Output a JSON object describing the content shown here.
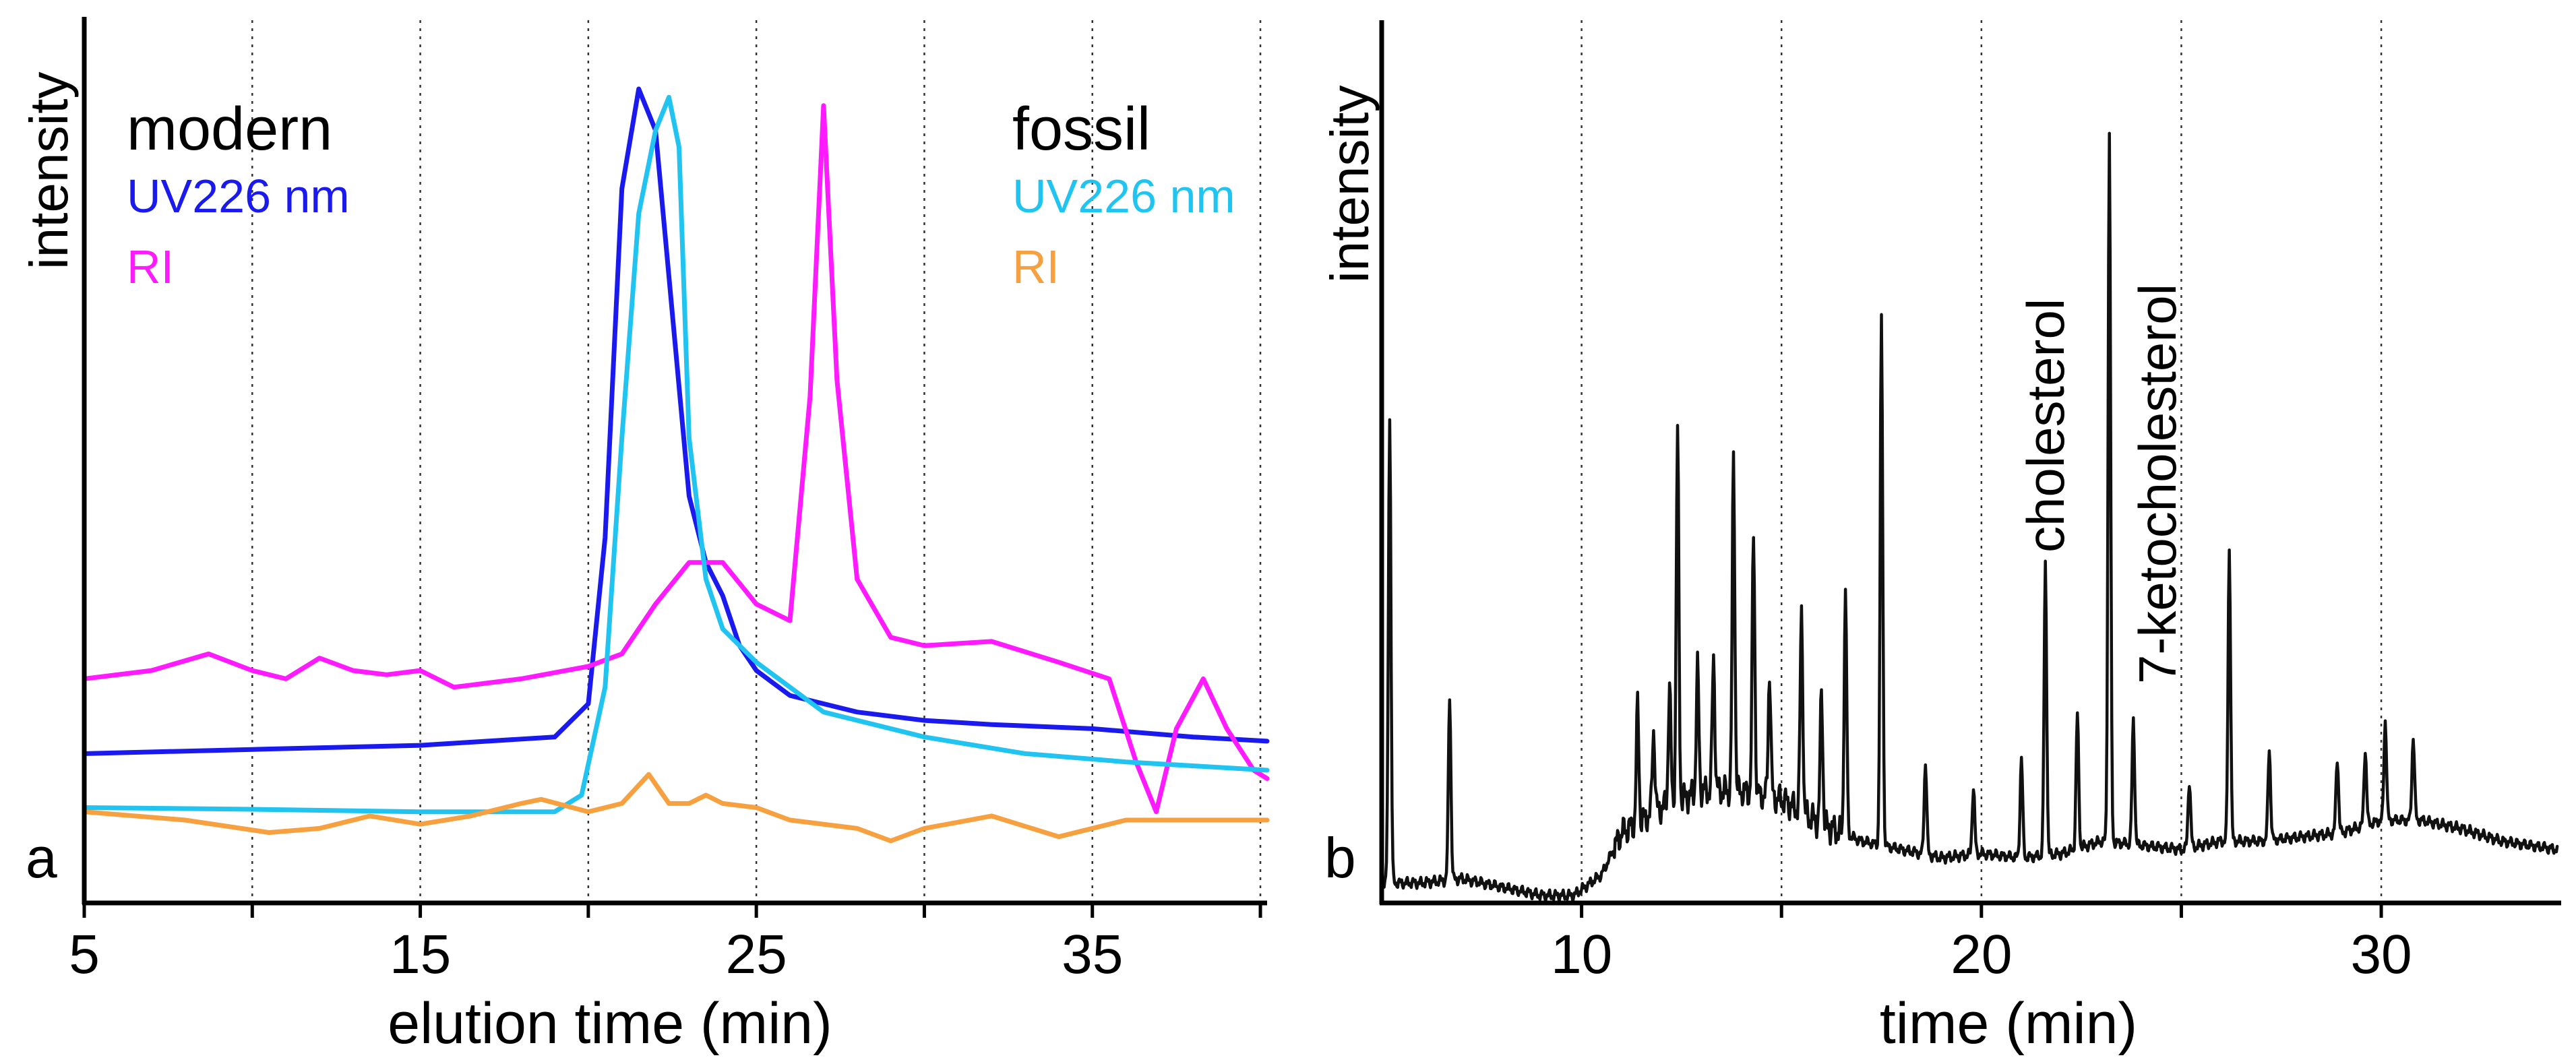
{
  "chart_data": [
    {
      "type": "line",
      "panel_label": "a",
      "title": "",
      "xlabel": "elution time (min)",
      "ylabel": "intensity",
      "xlim": [
        5,
        40.2
      ],
      "ylim": [
        0,
        100
      ],
      "grid": true,
      "x_ticks": [
        5,
        10,
        15,
        20,
        25,
        30,
        35,
        40
      ],
      "x_tick_labels": [
        {
          "value": 5,
          "text": "5"
        },
        {
          "value": 15,
          "text": "15"
        },
        {
          "value": 25,
          "text": "25"
        },
        {
          "value": 35,
          "text": "35"
        }
      ],
      "legend": {
        "groups": [
          {
            "heading": "modern",
            "placement": "top-left",
            "entries": [
              {
                "text": "UV226 nm",
                "color": "#1a1aee"
              },
              {
                "text": "RI",
                "color": "#ff1aff"
              }
            ]
          },
          {
            "heading": "fossil",
            "placement": "top-right",
            "entries": [
              {
                "text": "UV226 nm",
                "color": "#21c4f0"
              },
              {
                "text": "RI",
                "color": "#f7a040"
              }
            ]
          }
        ]
      },
      "series": [
        {
          "name": "modern UV226 nm",
          "color": "#1a1aee",
          "x": [
            5,
            10,
            15,
            19,
            20,
            20.5,
            21,
            21.5,
            22,
            22.5,
            23,
            23.5,
            24,
            24.5,
            25,
            26,
            28,
            30,
            32,
            35,
            38,
            40.2
          ],
          "y": [
            17,
            17.5,
            18,
            19,
            23,
            43,
            85,
            97,
            92,
            70,
            48,
            40,
            36,
            30,
            27,
            24,
            22,
            21,
            20.5,
            20,
            19,
            18.5
          ]
        },
        {
          "name": "modern RI",
          "color": "#ff1aff",
          "x": [
            5,
            7,
            8.7,
            10,
            11,
            12,
            13,
            14,
            15,
            16,
            18,
            20,
            21,
            22,
            23,
            24,
            25,
            26,
            26.6,
            27,
            27.4,
            28,
            29,
            30,
            32,
            34,
            35.5,
            36.3,
            36.9,
            37.5,
            38.3,
            39,
            39.8,
            40.2
          ],
          "y": [
            26,
            27,
            29,
            27,
            26,
            28.5,
            27,
            26.5,
            27,
            25,
            26,
            27.5,
            29,
            35,
            40,
            40,
            35,
            33,
            60,
            95,
            62,
            38,
            31,
            30,
            30.5,
            28,
            26,
            16,
            10,
            20,
            26,
            20,
            15,
            14
          ]
        },
        {
          "name": "fossil UV226 nm",
          "color": "#21c4f0",
          "x": [
            5,
            10,
            15,
            19,
            19.8,
            20.5,
            21,
            21.5,
            22,
            22.4,
            22.7,
            23,
            23.5,
            24,
            25,
            27,
            30,
            33,
            36,
            40.2
          ],
          "y": [
            10.5,
            10.3,
            10,
            10,
            12,
            25,
            55,
            82,
            92,
            96,
            90,
            55,
            38,
            32,
            28,
            22,
            19,
            17,
            16,
            15
          ]
        },
        {
          "name": "fossil RI",
          "color": "#f7a040",
          "x": [
            5,
            8,
            10.5,
            12,
            13.5,
            15,
            16.5,
            18,
            18.6,
            20,
            21,
            21.8,
            22.4,
            23,
            23.5,
            24,
            25,
            26,
            28,
            29,
            30,
            32,
            34,
            36,
            38,
            40.2
          ],
          "y": [
            10,
            9,
            7.5,
            8,
            9.5,
            8.5,
            9.5,
            11,
            11.5,
            10,
            11,
            14.5,
            11,
            11,
            12,
            11,
            10.5,
            9,
            8,
            6.5,
            8,
            9.5,
            7,
            9,
            9,
            9
          ]
        }
      ]
    },
    {
      "type": "line",
      "panel_label": "b",
      "title": "",
      "xlabel": "time (min)",
      "ylabel": "intensity",
      "xlim": [
        5,
        34.5
      ],
      "ylim": [
        0,
        100
      ],
      "grid": true,
      "x_ticks": [
        10,
        15,
        20,
        25,
        30
      ],
      "x_tick_labels": [
        {
          "value": 10,
          "text": "10"
        },
        {
          "value": 20,
          "text": "20"
        },
        {
          "value": 30,
          "text": "30"
        }
      ],
      "annotations": [
        {
          "text": "cholesterol",
          "x": 21.6
        },
        {
          "text": "7-ketocholesterol",
          "x": 23.2
        }
      ],
      "series": [
        {
          "name": "chromatogram",
          "color": "#111111",
          "baseline": {
            "x": [
              5,
              6,
              7,
              8,
              9,
              9.8,
              10.5,
              11,
              12,
              13,
              14,
              15,
              16,
              17,
              18,
              19,
              20,
              21,
              22,
              23,
              24,
              25,
              26,
              27,
              28,
              29,
              30,
              31,
              32,
              33,
              34.4
            ],
            "y": [
              2,
              2,
              2.5,
              1.5,
              0.5,
              0.5,
              3,
              8,
              11,
              13,
              13,
              12,
              9,
              7,
              6,
              5,
              5.5,
              5,
              5.5,
              7,
              6.5,
              6,
              7,
              7,
              7.5,
              8,
              9.5,
              9.5,
              8.5,
              7,
              6
            ]
          },
          "peaks": [
            {
              "x": 5.2,
              "height": 56
            },
            {
              "x": 6.7,
              "height": 22
            },
            {
              "x": 11.4,
              "height": 14
            },
            {
              "x": 11.8,
              "height": 10
            },
            {
              "x": 12.2,
              "height": 14
            },
            {
              "x": 12.4,
              "height": 44
            },
            {
              "x": 12.9,
              "height": 15
            },
            {
              "x": 13.3,
              "height": 16
            },
            {
              "x": 13.8,
              "height": 40
            },
            {
              "x": 14.3,
              "height": 31
            },
            {
              "x": 14.7,
              "height": 15
            },
            {
              "x": 15.5,
              "height": 24
            },
            {
              "x": 16.0,
              "height": 16
            },
            {
              "x": 16.6,
              "height": 29
            },
            {
              "x": 17.5,
              "height": 63
            },
            {
              "x": 18.6,
              "height": 11
            },
            {
              "x": 19.8,
              "height": 8
            },
            {
              "x": 21.0,
              "height": 12
            },
            {
              "x": 21.6,
              "height": 35
            },
            {
              "x": 22.4,
              "height": 16
            },
            {
              "x": 23.2,
              "height": 85
            },
            {
              "x": 23.8,
              "height": 15
            },
            {
              "x": 25.2,
              "height": 8
            },
            {
              "x": 26.2,
              "height": 35
            },
            {
              "x": 27.2,
              "height": 11
            },
            {
              "x": 28.9,
              "height": 9
            },
            {
              "x": 29.6,
              "height": 9
            },
            {
              "x": 30.1,
              "height": 12
            },
            {
              "x": 30.8,
              "height": 10
            }
          ]
        }
      ]
    }
  ]
}
